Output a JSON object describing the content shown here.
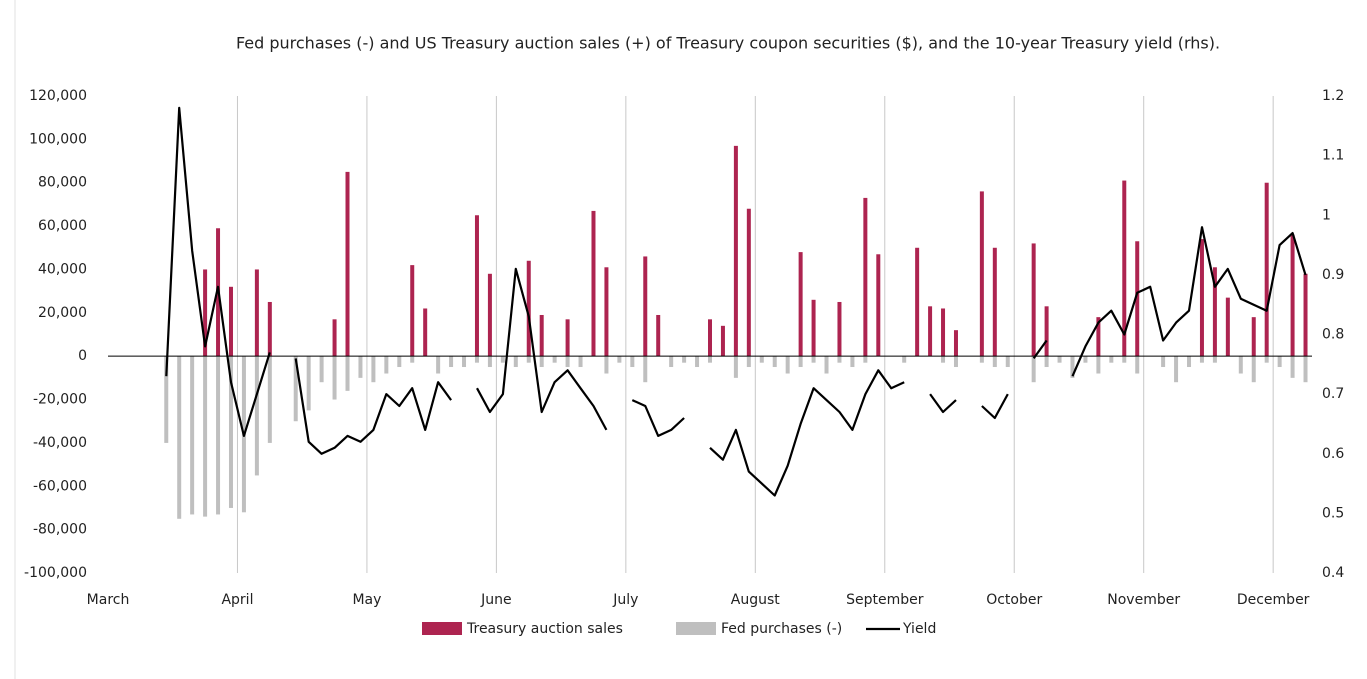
{
  "chart_data": {
    "type": "bar",
    "title": "Fed purchases (-) and US Treasury auction sales (+) of Treasury coupon securities ($), and the 10-year Treasury yield (rhs).",
    "categories": [
      "March",
      null,
      null,
      null,
      null,
      null,
      null,
      null,
      null,
      null,
      "April",
      null,
      null,
      null,
      null,
      null,
      null,
      null,
      null,
      null,
      "May",
      null,
      null,
      null,
      null,
      null,
      null,
      null,
      null,
      null,
      "June",
      null,
      null,
      null,
      null,
      null,
      null,
      null,
      null,
      null,
      "July",
      null,
      null,
      null,
      null,
      null,
      null,
      null,
      null,
      null,
      "August",
      null,
      null,
      null,
      null,
      null,
      null,
      null,
      null,
      null,
      "September",
      null,
      null,
      null,
      null,
      null,
      null,
      null,
      null,
      null,
      "October",
      null,
      null,
      null,
      null,
      null,
      null,
      null,
      null,
      null,
      "November",
      null,
      null,
      null,
      null,
      null,
      null,
      null,
      null,
      null,
      "December",
      null,
      null
    ],
    "series": [
      {
        "name": "Treasury auction sales",
        "color": "#ad2450",
        "values": [
          null,
          null,
          null,
          null,
          null,
          null,
          null,
          40000,
          59000,
          32000,
          null,
          40000,
          25000,
          null,
          null,
          null,
          null,
          17000,
          85000,
          null,
          null,
          null,
          null,
          42000,
          22000,
          null,
          null,
          null,
          65000,
          38000,
          null,
          null,
          44000,
          19000,
          null,
          17000,
          null,
          67000,
          41000,
          null,
          null,
          46000,
          19000,
          null,
          null,
          null,
          17000,
          14000,
          97000,
          68000,
          null,
          null,
          null,
          48000,
          26000,
          null,
          25000,
          null,
          73000,
          47000,
          null,
          null,
          50000,
          23000,
          22000,
          12000,
          null,
          76000,
          50000,
          null,
          null,
          52000,
          23000,
          null,
          null,
          null,
          18000,
          null,
          81000,
          53000,
          null,
          null,
          null,
          null,
          54000,
          41000,
          27000,
          null,
          18000,
          80000,
          null,
          56000,
          38000
        ]
      },
      {
        "name": "Fed purchases (-)",
        "color": "#bfbfbf",
        "values": [
          null,
          null,
          null,
          null,
          -40000,
          -75000,
          -73000,
          -74000,
          -73000,
          -70000,
          -72000,
          -55000,
          -40000,
          null,
          -30000,
          -25000,
          -12000,
          -20000,
          -16000,
          -10000,
          -12000,
          -8000,
          -5000,
          -3000,
          null,
          -8000,
          -5000,
          -5000,
          -3000,
          -5000,
          -3000,
          -5000,
          -3000,
          -5000,
          -3000,
          -5000,
          -5000,
          null,
          -8000,
          -3000,
          -5000,
          -12000,
          null,
          -5000,
          -3000,
          -5000,
          -3000,
          null,
          -10000,
          -5000,
          -3000,
          -5000,
          -8000,
          -5000,
          -3000,
          -8000,
          -3000,
          -5000,
          -3000,
          null,
          null,
          -3000,
          null,
          null,
          -3000,
          -5000,
          null,
          -3000,
          -5000,
          -5000,
          null,
          -12000,
          -5000,
          -3000,
          -10000,
          -3000,
          -8000,
          -3000,
          -3000,
          -8000,
          null,
          -5000,
          -12000,
          -5000,
          -3000,
          -3000,
          null,
          -8000,
          -12000,
          -3000,
          -5000,
          -10000,
          -12000
        ]
      },
      {
        "name": "Yield",
        "color": "#000000",
        "type": "line",
        "axis": "y2",
        "values": [
          null,
          null,
          null,
          null,
          0.73,
          1.18,
          0.94,
          0.78,
          0.88,
          0.72,
          0.63,
          0.7,
          0.77,
          null,
          0.76,
          0.62,
          0.6,
          0.61,
          0.63,
          0.62,
          0.64,
          0.7,
          0.68,
          0.71,
          0.64,
          0.72,
          0.69,
          null,
          0.71,
          0.67,
          0.7,
          0.91,
          0.83,
          0.67,
          0.72,
          0.74,
          0.71,
          0.68,
          0.64,
          null,
          0.69,
          0.68,
          0.63,
          0.64,
          0.66,
          null,
          0.61,
          0.59,
          0.64,
          0.57,
          0.55,
          0.53,
          0.58,
          0.65,
          0.71,
          0.69,
          0.67,
          0.64,
          0.7,
          0.74,
          0.71,
          0.72,
          null,
          0.7,
          0.67,
          0.69,
          null,
          0.68,
          0.66,
          0.7,
          null,
          0.76,
          0.79,
          null,
          0.73,
          0.78,
          0.82,
          0.84,
          0.8,
          0.87,
          0.88,
          0.79,
          0.82,
          0.84,
          0.98,
          0.88,
          0.91,
          0.86,
          0.85,
          0.84,
          0.95,
          0.97,
          0.9
        ]
      }
    ],
    "ylim": [
      -100000,
      120000
    ],
    "yticks": [
      {
        "value": -100000,
        "label": "-100,000"
      },
      {
        "value": -80000,
        "label": "-80,000"
      },
      {
        "value": -60000,
        "label": "-60,000"
      },
      {
        "value": -40000,
        "label": "-40,000"
      },
      {
        "value": -20000,
        "label": "-20,000"
      },
      0,
      {
        "value": 20000,
        "label": "20,000"
      },
      {
        "value": 40000,
        "label": "40,000"
      },
      {
        "value": 60000,
        "label": "60,000"
      },
      {
        "value": 80000,
        "label": "80,000"
      },
      {
        "value": 100000,
        "label": "100,000"
      },
      {
        "value": 120000,
        "label": "120,000"
      }
    ],
    "y2lim": [
      0.4,
      1.2
    ],
    "y2ticks": [
      0.4,
      0.5,
      0.6,
      0.7,
      0.8,
      0.9,
      1,
      1.1,
      1.2
    ],
    "legend": "bottom"
  }
}
